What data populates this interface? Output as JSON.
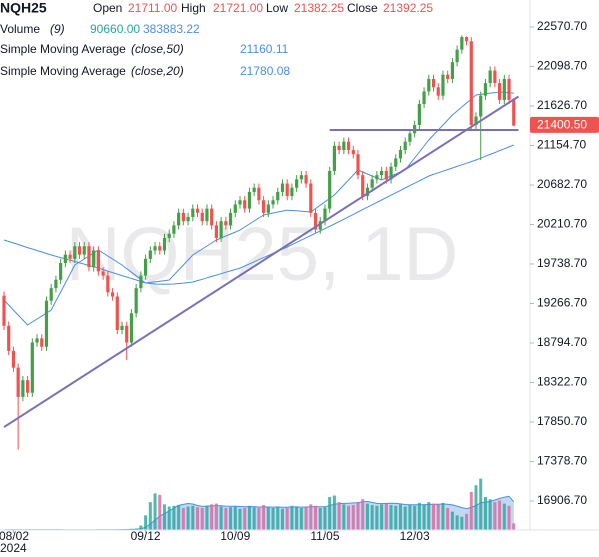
{
  "chart_data": {
    "type": "candlestick",
    "symbol": "NQH25",
    "watermark": "NQH25, 1D",
    "ohlc_legend": [
      {
        "label": "Open",
        "value": "21711.00"
      },
      {
        "label": "High",
        "value": "21721.00"
      },
      {
        "label": "Low",
        "value": "21382.25"
      },
      {
        "label": "Close",
        "value": "21392.25"
      }
    ],
    "up_color": "#43a047",
    "down_color": "#ef5350",
    "categories": [
      null,
      null,
      "08/02",
      null,
      null,
      null,
      null,
      null,
      null,
      null,
      null,
      null,
      null,
      null,
      null,
      null,
      null,
      null,
      null,
      null,
      null,
      null,
      null,
      null,
      null,
      null,
      null,
      null,
      null,
      null,
      "09/12",
      null,
      null,
      null,
      null,
      null,
      null,
      null,
      null,
      null,
      null,
      null,
      null,
      null,
      null,
      null,
      null,
      null,
      null,
      "10/09",
      null,
      null,
      null,
      null,
      null,
      null,
      null,
      null,
      null,
      null,
      null,
      null,
      null,
      null,
      null,
      null,
      null,
      null,
      "11/05",
      null,
      null,
      null,
      null,
      null,
      null,
      null,
      null,
      null,
      null,
      null,
      null,
      null,
      null,
      null,
      null,
      null,
      null,
      "12/03",
      null,
      null,
      null,
      null,
      null,
      null,
      null,
      null,
      null,
      null,
      null,
      null,
      null,
      null,
      null,
      null,
      null,
      null,
      null,
      null,
      null
    ],
    "year_label": "2024",
    "open": [
      19360,
      19000,
      18700,
      18500,
      18150,
      18350,
      18200,
      18800,
      18850,
      18750,
      19300,
      19450,
      19550,
      19750,
      19850,
      19800,
      19950,
      19850,
      19950,
      19700,
      19900,
      19650,
      19600,
      19400,
      19350,
      18950,
      19000,
      18800,
      19150,
      19450,
      19600,
      19800,
      19900,
      19950,
      19900,
      20050,
      20100,
      20200,
      20350,
      20250,
      20300,
      20400,
      20350,
      20250,
      20400,
      20200,
      20050,
      20250,
      20200,
      20350,
      20450,
      20500,
      20400,
      20600,
      20650,
      20500,
      20350,
      20450,
      20500,
      20600,
      20700,
      20550,
      20650,
      20750,
      20800,
      20700,
      20350,
      20150,
      20250,
      20400,
      20850,
      21150,
      21100,
      21200,
      21100,
      21050,
      20800,
      20550,
      20650,
      20750,
      20800,
      20850,
      20750,
      20900,
      21000,
      21100,
      21200,
      21300,
      21400,
      21650,
      21800,
      21950,
      21850,
      21750,
      22000,
      21950,
      22150,
      22300,
      22450,
      22400,
      21400,
      21500,
      21750,
      21900,
      22050,
      21900,
      21700,
      21950,
      21711
    ],
    "high": [
      19410,
      19050,
      18750,
      18550,
      18400,
      18400,
      18850,
      18900,
      18900,
      19350,
      19500,
      19600,
      19800,
      19900,
      19900,
      20000,
      20000,
      20000,
      20000,
      19950,
      19950,
      19700,
      19650,
      19450,
      19400,
      19050,
      19050,
      19200,
      19500,
      19650,
      19850,
      19950,
      20000,
      20000,
      20100,
      20150,
      20250,
      20400,
      20400,
      20350,
      20450,
      20450,
      20400,
      20450,
      20450,
      20250,
      20300,
      20300,
      20400,
      20500,
      20550,
      20550,
      20650,
      20700,
      20700,
      20550,
      20500,
      20550,
      20650,
      20750,
      20750,
      20700,
      20800,
      20850,
      20850,
      20750,
      20400,
      20300,
      20450,
      20900,
      21200,
      21200,
      21250,
      21250,
      21150,
      21100,
      20850,
      20700,
      20800,
      20850,
      20900,
      20900,
      20950,
      21050,
      21150,
      21250,
      21350,
      21450,
      21700,
      21850,
      22000,
      22000,
      21900,
      22050,
      22050,
      22200,
      22350,
      22470,
      22460,
      22450,
      21550,
      21800,
      21950,
      22100,
      22100,
      21950,
      22000,
      22000,
      21721
    ],
    "low": [
      18950,
      18650,
      18450,
      17520,
      18100,
      18150,
      18150,
      18750,
      18700,
      18700,
      19250,
      19400,
      19500,
      19700,
      19750,
      19750,
      19800,
      19800,
      19650,
      19650,
      19600,
      19550,
      19350,
      19300,
      18900,
      18900,
      18590,
      18750,
      19100,
      19400,
      19550,
      19750,
      19850,
      19850,
      19850,
      20000,
      20050,
      20150,
      20200,
      20200,
      20250,
      20300,
      20200,
      20200,
      20150,
      20000,
      20000,
      20150,
      20150,
      20300,
      20400,
      20350,
      20350,
      20550,
      20450,
      20300,
      20300,
      20400,
      20450,
      20550,
      20500,
      20500,
      20600,
      20700,
      20650,
      20300,
      20100,
      20100,
      20200,
      20350,
      20800,
      21050,
      21050,
      21050,
      21000,
      20750,
      20500,
      20500,
      20600,
      20700,
      20750,
      20700,
      20700,
      20850,
      20950,
      21050,
      21150,
      21250,
      21350,
      21600,
      21750,
      21800,
      21700,
      21700,
      21900,
      21900,
      22100,
      22250,
      22350,
      21350,
      21350,
      20980,
      21700,
      21850,
      21850,
      21650,
      21650,
      21650,
      21382.25
    ],
    "close": [
      19000,
      18700,
      18500,
      18150,
      18350,
      18200,
      18800,
      18850,
      18750,
      19300,
      19450,
      19550,
      19750,
      19850,
      19800,
      19950,
      19850,
      19950,
      19700,
      19900,
      19650,
      19600,
      19400,
      19350,
      18950,
      19000,
      18800,
      19150,
      19450,
      19600,
      19800,
      19900,
      19950,
      19900,
      20050,
      20100,
      20200,
      20350,
      20250,
      20300,
      20400,
      20350,
      20250,
      20400,
      20200,
      20050,
      20250,
      20200,
      20350,
      20450,
      20500,
      20400,
      20600,
      20650,
      20500,
      20350,
      20450,
      20500,
      20600,
      20700,
      20550,
      20650,
      20750,
      20800,
      20700,
      20350,
      20150,
      20250,
      20400,
      20850,
      21150,
      21100,
      21200,
      21100,
      21050,
      20800,
      20550,
      20650,
      20750,
      20800,
      20850,
      20750,
      20900,
      21000,
      21100,
      21200,
      21300,
      21400,
      21650,
      21800,
      21950,
      21850,
      21750,
      22000,
      21950,
      22150,
      22300,
      22450,
      22400,
      21400,
      21500,
      21750,
      21900,
      22050,
      21900,
      21700,
      21950,
      21700,
      21392.25
    ],
    "series": [
      {
        "name": "Simple Moving Average",
        "params": "(close,50)",
        "color": "#4a8fe0",
        "values": [
          20025,
          20007,
          19989,
          19971,
          19953,
          19935,
          19918,
          19900,
          19882,
          19864,
          19846,
          19830,
          19815,
          19799,
          19784,
          19768,
          19752,
          19737,
          19721,
          19706,
          19690,
          19672,
          19654,
          19636,
          19618,
          19600,
          19583,
          19565,
          19547,
          19529,
          19511,
          19505,
          19500,
          19498,
          19497,
          19498,
          19500,
          19505,
          19510,
          19516,
          19523,
          19540,
          19556,
          19573,
          19590,
          19606,
          19623,
          19640,
          19656,
          19673,
          19690,
          19715,
          19740,
          19765,
          19790,
          19815,
          19840,
          19866,
          19891,
          19916,
          19941,
          19969,
          19996,
          20024,
          20051,
          20079,
          20106,
          20134,
          20161,
          20189,
          20216,
          20245,
          20273,
          20302,
          20331,
          20360,
          20388,
          20417,
          20446,
          20474,
          20503,
          20532,
          20560,
          20589,
          20618,
          20647,
          20675,
          20704,
          20733,
          20761,
          20790,
          20809,
          20828,
          20847,
          20866,
          20886,
          20905,
          20924,
          20943,
          20962,
          20981,
          21003,
          21026,
          21048,
          21070,
          21093,
          21115,
          21138,
          21160.11
        ]
      },
      {
        "name": "Simple Moving Average",
        "params": "(close,20)",
        "color": "#4a8fe0",
        "values": [
          19308,
          19248,
          19188,
          19129,
          19069,
          19009,
          19045,
          19081,
          19116,
          19152,
          19188,
          19296,
          19403,
          19511,
          19618,
          19726,
          19762,
          19798,
          19834,
          19870,
          19906,
          19870,
          19834,
          19798,
          19762,
          19726,
          19683,
          19640,
          19597,
          19554,
          19511,
          19518,
          19525,
          19533,
          19540,
          19547,
          19607,
          19667,
          19726,
          19786,
          19846,
          19882,
          19918,
          19954,
          19989,
          20025,
          20049,
          20073,
          20097,
          20120,
          20144,
          20180,
          20216,
          20252,
          20288,
          20324,
          20336,
          20348,
          20360,
          20371,
          20383,
          20378,
          20374,
          20369,
          20365,
          20360,
          20401,
          20441,
          20482,
          20522,
          20563,
          20623,
          20683,
          20742,
          20802,
          20862,
          20838,
          20814,
          20790,
          20766,
          20742,
          20766,
          20790,
          20814,
          20838,
          20862,
          20934,
          21005,
          21077,
          21148,
          21220,
          21280,
          21340,
          21399,
          21459,
          21519,
          21567,
          21615,
          21662,
          21710,
          21758,
          21765,
          21772,
          21780,
          21787,
          21794,
          21790,
          21785,
          21780.08
        ]
      }
    ],
    "volume": {
      "name": "Volume",
      "params": "(9)",
      "value_label": "90660.00",
      "up_color": "#26a69a",
      "down_color": "#d9679b",
      "ma_color": "#4a8fe0",
      "vlim": [
        0,
        750000
      ],
      "values": [
        1500,
        2500,
        3000,
        4000,
        3000,
        2500,
        2000,
        2200,
        1800,
        1500,
        1600,
        1900,
        1700,
        1500,
        1800,
        2000,
        2300,
        2100,
        2500,
        3000,
        4000,
        3500,
        6000,
        8000,
        10000,
        9000,
        12000,
        15000,
        20000,
        60000,
        200000,
        380000,
        500000,
        480000,
        350000,
        320000,
        330000,
        340000,
        300000,
        320000,
        330000,
        310000,
        300000,
        330000,
        350000,
        360000,
        320000,
        300000,
        310000,
        320000,
        290000,
        300000,
        330000,
        310000,
        300000,
        340000,
        310000,
        300000,
        320000,
        290000,
        300000,
        330000,
        310000,
        300000,
        320000,
        350000,
        330000,
        300000,
        310000,
        450000,
        470000,
        380000,
        350000,
        330000,
        340000,
        380000,
        420000,
        360000,
        340000,
        330000,
        350000,
        360000,
        340000,
        330000,
        350000,
        320000,
        340000,
        330000,
        370000,
        350000,
        380000,
        360000,
        350000,
        370000,
        300000,
        250000,
        200000,
        180000,
        220000,
        520000,
        610000,
        700000,
        450000,
        420000,
        380000,
        400000,
        360000,
        330000,
        90660
      ],
      "ma_values": [
        2000,
        2200,
        2400,
        2600,
        2700,
        2700,
        2700,
        2700,
        2600,
        2500,
        2300,
        2200,
        2100,
        2000,
        1900,
        1800,
        1800,
        1800,
        1900,
        2000,
        2300,
        2500,
        2900,
        3600,
        4500,
        5300,
        6500,
        8000,
        10000,
        16000,
        38000,
        80000,
        135000,
        188000,
        226000,
        261000,
        298000,
        336000,
        349000,
        362000,
        354000,
        334000,
        322000,
        326000,
        328000,
        331000,
        330000,
        326000,
        325000,
        324000,
        320000,
        318000,
        319000,
        318000,
        313000,
        315000,
        313000,
        312000,
        313000,
        310000,
        311000,
        314000,
        315000,
        312000,
        314000,
        317000,
        319000,
        318000,
        316000,
        334000,
        352000,
        360000,
        363000,
        366000,
        369000,
        372000,
        384000,
        389000,
        377000,
        363000,
        360000,
        363000,
        364000,
        363000,
        356000,
        348000,
        345000,
        344000,
        345000,
        345000,
        348000,
        350000,
        351000,
        355000,
        352000,
        342000,
        326000,
        306000,
        292000,
        308000,
        334000,
        372000,
        381000,
        389000,
        409000,
        431000,
        447000,
        459000,
        383883.22
      ]
    },
    "trendlines": [
      {
        "color": "#7b6fb8",
        "x": [
          0,
          109
        ],
        "y": [
          17790,
          21740
        ]
      },
      {
        "color": "#7b6fb8",
        "x": [
          69,
          109
        ],
        "y": [
          21340,
          21340
        ]
      }
    ],
    "last_price": {
      "value": 21400.5,
      "label": "21400.50"
    },
    "ylim": [
      16560,
      22893
    ],
    "yticks": [
      {
        "value": 16906.7,
        "label": "16906.70"
      },
      {
        "value": 17378.7,
        "label": "17378.70"
      },
      {
        "value": 17850.7,
        "label": "17850.70"
      },
      {
        "value": 18322.7,
        "label": "18322.70"
      },
      {
        "value": 18794.7,
        "label": "18794.70"
      },
      {
        "value": 19266.7,
        "label": "19266.70"
      },
      {
        "value": 19738.7,
        "label": "19738.70"
      },
      {
        "value": 20210.7,
        "label": "20210.70"
      },
      {
        "value": 20682.7,
        "label": "20682.70"
      },
      {
        "value": 21154.7,
        "label": "21154.70"
      },
      {
        "value": 21626.7,
        "label": "21626.70"
      },
      {
        "value": 22098.7,
        "label": "22098.70"
      },
      {
        "value": 22570.7,
        "label": "22570.70"
      }
    ]
  }
}
